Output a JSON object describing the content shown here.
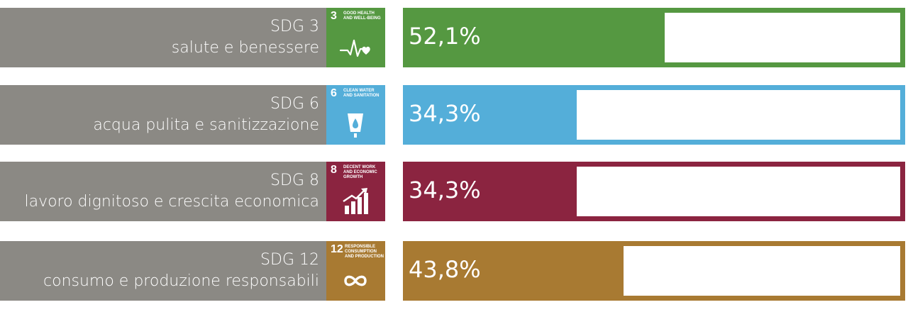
{
  "chart_data": {
    "type": "bar",
    "orientation": "horizontal",
    "categories": [
      "SDG 3",
      "SDG 6",
      "SDG 8",
      "SDG 12"
    ],
    "descriptions": [
      "salute e benessere",
      "acqua pulita e sanitizzazione",
      "lavoro dignitoso e crescita economica",
      "consumo e produzione responsabili"
    ],
    "values": [
      52.1,
      34.3,
      34.3,
      43.8
    ],
    "value_labels": [
      "52,1%",
      "34,3%",
      "34,3%",
      "43,8%"
    ],
    "unit": "%",
    "xlim": [
      0,
      100
    ],
    "colors": [
      "#559841",
      "#54aed9",
      "#8b2440",
      "#a87a32"
    ],
    "icons": [
      {
        "number": "3",
        "title": "GOOD HEALTH AND WELL-BEING",
        "name": "heartbeat-icon"
      },
      {
        "number": "6",
        "title": "CLEAN WATER AND SANITATION",
        "name": "water-glass-icon"
      },
      {
        "number": "8",
        "title": "DECENT WORK AND ECONOMIC GROWTH",
        "name": "growth-chart-icon"
      },
      {
        "number": "12",
        "title": "RESPONSIBLE CONSUMPTION AND PRODUCTION",
        "name": "infinity-icon"
      }
    ],
    "title": "",
    "xlabel": "",
    "ylabel": ""
  }
}
